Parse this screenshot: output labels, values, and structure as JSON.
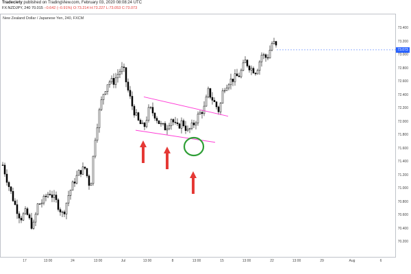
{
  "header": {
    "author": "Tradeciety",
    "published_text": "published on TradingView.com, February 03, 2020 08:08:24 UTC",
    "symbol": "FX:NZDJPY, 240",
    "ohlc_open": "70.015",
    "change": "−0.642 (−0.91%)",
    "ohlc_rest": "O:73.214 H:73.227 L:73.053 C:73.073"
  },
  "chart_title": "New Zealand Dollar / Japanese Yen, 240, FXCM",
  "colors": {
    "up": "#ffffff",
    "down": "#000000",
    "trendline": "#ff3bd6",
    "arrow": "#e53935",
    "circle": "#2e9e35",
    "price_tag": "#2962ff"
  },
  "price_tag": "73.073",
  "chart_data": {
    "type": "candlestick",
    "y_ticks": [
      "73.400",
      "73.200",
      "73.000",
      "72.800",
      "72.600",
      "72.400",
      "72.200",
      "72.000",
      "71.800",
      "71.600",
      "71.400",
      "71.200",
      "71.000",
      "70.800",
      "70.600",
      "70.400",
      "70.200"
    ],
    "x_ticks": [
      "17",
      "13:00",
      "24",
      "13:00",
      "Jul",
      "13:00",
      "8",
      "13:00",
      "15",
      "13:00",
      "22",
      "13:00",
      "29",
      "Aug",
      "6"
    ],
    "ylim": [
      70.1,
      73.45
    ],
    "last_price": 73.073,
    "annotations": {
      "upper_trendline": [
        [
          71.2,
          72.37
        ],
        [
          72.3,
          72.08
        ]
      ],
      "lower_trendline": [
        [
          71.2,
          71.87
        ],
        [
          72.5,
          71.69
        ]
      ],
      "arrows": 3,
      "circle_low": 71.63
    }
  }
}
